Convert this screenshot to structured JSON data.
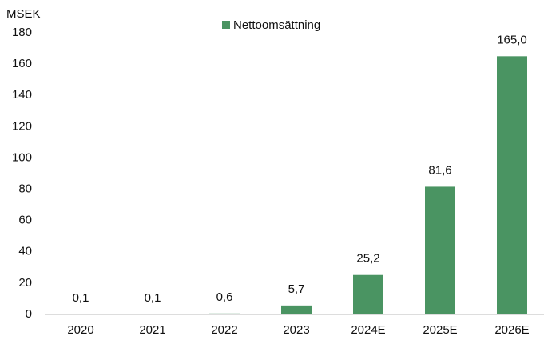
{
  "chart_data": {
    "type": "bar",
    "ylabel": "MSEK",
    "categories": [
      "2020",
      "2021",
      "2022",
      "2023",
      "2024E",
      "2025E",
      "2026E"
    ],
    "series": [
      {
        "name": "Nettoomsättning",
        "color": "#4a9462",
        "values": [
          0.1,
          0.1,
          0.6,
          5.7,
          25.2,
          81.6,
          165.0
        ],
        "value_labels": [
          "0,1",
          "0,1",
          "0,6",
          "5,7",
          "25,2",
          "81,6",
          "165,0"
        ]
      }
    ],
    "ylim": [
      0,
      180
    ],
    "yticks": [
      0,
      20,
      40,
      60,
      80,
      100,
      120,
      140,
      160,
      180
    ],
    "grid": false,
    "legend": "top"
  }
}
